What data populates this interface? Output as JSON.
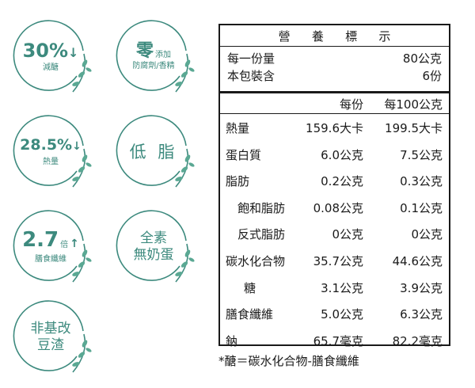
{
  "badges": [
    {
      "big": "30%",
      "arrow": "↓",
      "small": "減醣"
    },
    {
      "big": "零",
      "side": "添加",
      "small": "防腐劑/香精"
    },
    {
      "big": "28.5%",
      "arrow": "↓",
      "small": "熱量"
    },
    {
      "mid": "低 脂"
    },
    {
      "big": "2.7",
      "side": "倍",
      "arrow": "↑",
      "small": "膳食纖維"
    },
    {
      "line1": "全素",
      "line2": "無奶蛋"
    },
    {
      "line1": "非基改",
      "line2": "豆渣"
    }
  ],
  "colors": {
    "accent": "#3d8a7e",
    "text": "#1a1a1a"
  },
  "nutrition": {
    "title": [
      "營",
      "養",
      "標",
      "示"
    ],
    "serving_label": "每一份量",
    "serving_value": "80公克",
    "package_label": "本包裝含",
    "package_value": "6份",
    "col_per_serving": "每份",
    "col_per_100": "每100公克",
    "rows": [
      {
        "name": "熱量",
        "a": "159.6大卡",
        "b": "199.5大卡"
      },
      {
        "name": "蛋白質",
        "a": "6.0公克",
        "b": "7.5公克"
      },
      {
        "name": "脂肪",
        "a": "0.2公克",
        "b": "0.3公克"
      },
      {
        "name": "飽和脂肪",
        "a": "0.08公克",
        "b": "0.1公克"
      },
      {
        "name": "反式脂肪",
        "a": "0公克",
        "b": "0公克"
      },
      {
        "name": "碳水化合物",
        "a": "35.7公克",
        "b": "44.6公克"
      },
      {
        "name": "糖",
        "a": "3.1公克",
        "b": "3.9公克"
      },
      {
        "name": "膳食纖維",
        "a": "5.0公克",
        "b": "6.3公克"
      },
      {
        "name": "鈉",
        "a": "65.7毫克",
        "b": "82.2毫克"
      }
    ],
    "footnote": "*醣＝碳水化合物-膳食纖維"
  }
}
